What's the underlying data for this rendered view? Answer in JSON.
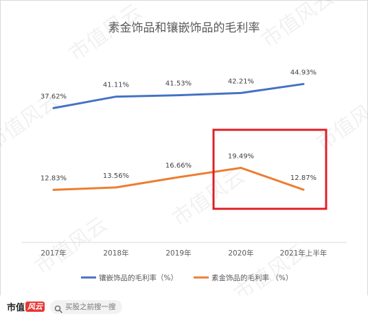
{
  "chart_data": {
    "type": "line",
    "title": "素金饰品和镶嵌饰品的毛利率",
    "categories": [
      "2017年",
      "2018年",
      "2019年",
      "2020年",
      "2021年上半年"
    ],
    "series": [
      {
        "name": "镶嵌饰品的毛利率（%）",
        "color": "#4472C4",
        "values": [
          37.62,
          41.11,
          41.53,
          42.21,
          44.93
        ],
        "labels": [
          "37.62%",
          "41.11%",
          "41.53%",
          "42.21%",
          "44.93%"
        ]
      },
      {
        "name": "素金饰品的毛利率 （%）",
        "color": "#ED7D31",
        "values": [
          12.83,
          13.56,
          16.66,
          19.49,
          12.87
        ],
        "labels": [
          "12.83%",
          "13.56%",
          "16.66%",
          "19.49%",
          "12.87%"
        ]
      }
    ],
    "grid": false,
    "legend": "bottom",
    "highlight_color": "#E01F26"
  },
  "watermark": "市值风云",
  "footer": {
    "brand": "市值",
    "brand_badge": "风云",
    "search_placeholder": "买股之前搜一搜"
  }
}
